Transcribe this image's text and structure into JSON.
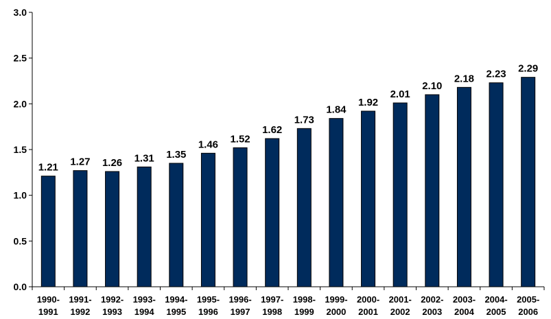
{
  "chart_data": {
    "type": "bar",
    "title": "",
    "xlabel": "",
    "ylabel": "",
    "ylim": [
      0,
      3.0
    ],
    "yticks": [
      "0.0",
      "0.5",
      "1.0",
      "1.5",
      "2.0",
      "2.5",
      "3.0"
    ],
    "grid": false,
    "legend": "none",
    "bar_color": "#002B5C",
    "categories": [
      [
        "1990-",
        "1991"
      ],
      [
        "1991-",
        "1992"
      ],
      [
        "1992-",
        "1993"
      ],
      [
        "1993-",
        "1994"
      ],
      [
        "1994-",
        "1995"
      ],
      [
        "1995-",
        "1996"
      ],
      [
        "1996-",
        "1997"
      ],
      [
        "1997-",
        "1998"
      ],
      [
        "1998-",
        "1999"
      ],
      [
        "1999-",
        "2000"
      ],
      [
        "2000-",
        "2001"
      ],
      [
        "2001-",
        "2002"
      ],
      [
        "2002-",
        "2003"
      ],
      [
        "2003-",
        "2004"
      ],
      [
        "2004-",
        "2005"
      ],
      [
        "2005-",
        "2006"
      ]
    ],
    "values": [
      1.21,
      1.27,
      1.26,
      1.31,
      1.35,
      1.46,
      1.52,
      1.62,
      1.73,
      1.84,
      1.92,
      2.01,
      2.1,
      2.18,
      2.23,
      2.29
    ],
    "value_labels": [
      "1.21",
      "1.27",
      "1.26",
      "1.31",
      "1.35",
      "1.46",
      "1.52",
      "1.62",
      "1.73",
      "1.84",
      "1.92",
      "2.01",
      "2.10",
      "2.18",
      "2.23",
      "2.29"
    ]
  }
}
